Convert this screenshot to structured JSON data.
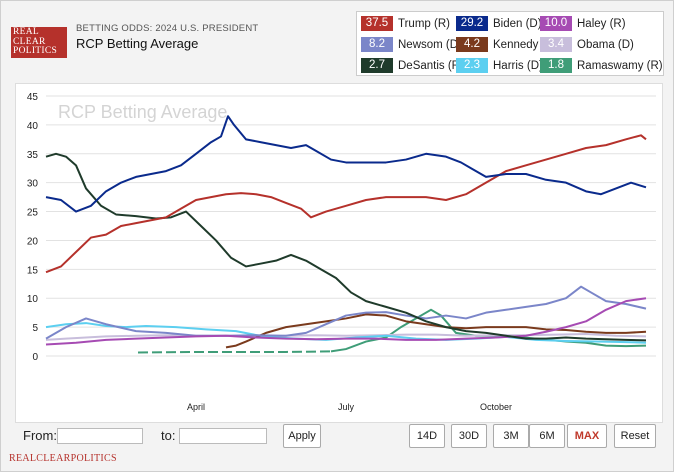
{
  "header": {
    "logo_line1": "REAL",
    "logo_line2": "CLEAR",
    "logo_line3": "POLITICS",
    "subhead": "BETTING ODDS: 2024 U.S. PRESIDENT",
    "title": "RCP Betting Average"
  },
  "legend": [
    {
      "value": "37.5",
      "label": "Trump (R)",
      "color": "#b5312b"
    },
    {
      "value": "29.2",
      "label": "Biden (D)",
      "color": "#0a2a8c"
    },
    {
      "value": "10.0",
      "label": "Haley (R)",
      "color": "#a64bb3"
    },
    {
      "value": "8.2",
      "label": "Newsom (D)",
      "color": "#7b86c9"
    },
    {
      "value": "4.2",
      "label": "Kennedy (I)",
      "color": "#7a3a1d"
    },
    {
      "value": "3.4",
      "label": "Obama (D)",
      "color": "#c8bedc"
    },
    {
      "value": "2.7",
      "label": "DeSantis (R)",
      "color": "#1f3b2b"
    },
    {
      "value": "2.3",
      "label": "Harris (D)",
      "color": "#5ccff0"
    },
    {
      "value": "1.8",
      "label": "Ramaswamy (R)",
      "color": "#3f9d78"
    }
  ],
  "controls": {
    "from_label": "From:",
    "to_label": "to:",
    "apply_label": "Apply",
    "ranges": [
      "14D",
      "30D",
      "3M",
      "6M",
      "MAX"
    ],
    "active_range": "MAX",
    "reset_label": "Reset"
  },
  "footer": "REALCLEARPOLITICS",
  "chart_data": {
    "type": "line",
    "watermark": "RCP Betting Average",
    "yticks": [
      0,
      5,
      10,
      15,
      20,
      25,
      30,
      35,
      40,
      45
    ],
    "ylim": [
      0,
      45
    ],
    "x_tick_labels": [
      {
        "label": "April",
        "x": 150
      },
      {
        "label": "July",
        "x": 300
      },
      {
        "label": "October",
        "x": 450
      }
    ],
    "xlim": [
      0,
      610
    ],
    "grid": "horizontal",
    "series": [
      {
        "name": "Ramaswamy (R)",
        "color": "#3f9d78",
        "dashed_until": 285,
        "points": [
          [
            92,
            0.6
          ],
          [
            150,
            0.7
          ],
          [
            200,
            0.7
          ],
          [
            240,
            0.7
          ],
          [
            285,
            0.8
          ],
          [
            300,
            1.2
          ],
          [
            320,
            2.5
          ],
          [
            340,
            3.2
          ],
          [
            355,
            5.0
          ],
          [
            370,
            6.5
          ],
          [
            385,
            8.0
          ],
          [
            395,
            7.0
          ],
          [
            410,
            4.0
          ],
          [
            430,
            3.5
          ],
          [
            460,
            3.5
          ],
          [
            490,
            3.0
          ],
          [
            520,
            2.5
          ],
          [
            540,
            2.3
          ],
          [
            560,
            1.8
          ],
          [
            580,
            1.7
          ],
          [
            600,
            1.8
          ]
        ]
      },
      {
        "name": "Obama (D)",
        "color": "#c8bedc",
        "points": [
          [
            0,
            2.8
          ],
          [
            20,
            3.0
          ],
          [
            40,
            3.2
          ],
          [
            60,
            3.4
          ],
          [
            90,
            3.5
          ],
          [
            120,
            3.6
          ],
          [
            150,
            3.5
          ],
          [
            180,
            3.5
          ],
          [
            210,
            3.3
          ],
          [
            240,
            3.5
          ],
          [
            270,
            3.6
          ],
          [
            300,
            3.5
          ],
          [
            330,
            3.6
          ],
          [
            360,
            3.7
          ],
          [
            390,
            3.7
          ],
          [
            420,
            3.5
          ],
          [
            450,
            3.6
          ],
          [
            480,
            3.6
          ],
          [
            510,
            3.7
          ],
          [
            540,
            3.8
          ],
          [
            570,
            3.5
          ],
          [
            600,
            3.4
          ]
        ]
      },
      {
        "name": "Harris (D)",
        "color": "#5ccff0",
        "points": [
          [
            0,
            5.0
          ],
          [
            20,
            5.5
          ],
          [
            40,
            5.7
          ],
          [
            60,
            5.2
          ],
          [
            80,
            5.0
          ],
          [
            100,
            5.2
          ],
          [
            130,
            5.0
          ],
          [
            160,
            4.6
          ],
          [
            190,
            4.3
          ],
          [
            220,
            3.3
          ],
          [
            250,
            3.0
          ],
          [
            280,
            2.8
          ],
          [
            310,
            3.2
          ],
          [
            340,
            3.5
          ],
          [
            370,
            3.0
          ],
          [
            400,
            2.8
          ],
          [
            430,
            3.0
          ],
          [
            460,
            3.3
          ],
          [
            490,
            2.8
          ],
          [
            520,
            2.6
          ],
          [
            550,
            2.5
          ],
          [
            580,
            2.4
          ],
          [
            600,
            2.3
          ]
        ]
      },
      {
        "name": "Kennedy (I)",
        "color": "#7a3a1d",
        "points": [
          [
            180,
            1.5
          ],
          [
            190,
            1.8
          ],
          [
            200,
            2.5
          ],
          [
            220,
            4.0
          ],
          [
            240,
            5.0
          ],
          [
            260,
            5.5
          ],
          [
            280,
            6.0
          ],
          [
            300,
            6.5
          ],
          [
            320,
            7.2
          ],
          [
            340,
            7.0
          ],
          [
            360,
            6.0
          ],
          [
            380,
            5.5
          ],
          [
            400,
            5.0
          ],
          [
            420,
            4.8
          ],
          [
            440,
            5.0
          ],
          [
            460,
            5.0
          ],
          [
            480,
            5.0
          ],
          [
            500,
            4.6
          ],
          [
            520,
            4.5
          ],
          [
            540,
            4.2
          ],
          [
            560,
            4.0
          ],
          [
            580,
            4.0
          ],
          [
            600,
            4.2
          ]
        ]
      },
      {
        "name": "Newsom (D)",
        "color": "#7b86c9",
        "points": [
          [
            0,
            3.0
          ],
          [
            20,
            5.0
          ],
          [
            40,
            6.5
          ],
          [
            60,
            5.5
          ],
          [
            90,
            4.3
          ],
          [
            120,
            4.0
          ],
          [
            150,
            3.5
          ],
          [
            180,
            3.5
          ],
          [
            210,
            3.6
          ],
          [
            240,
            3.5
          ],
          [
            260,
            4.0
          ],
          [
            280,
            5.5
          ],
          [
            300,
            7.0
          ],
          [
            320,
            7.5
          ],
          [
            340,
            7.6
          ],
          [
            360,
            7.0
          ],
          [
            380,
            6.5
          ],
          [
            400,
            7.0
          ],
          [
            420,
            6.5
          ],
          [
            440,
            7.5
          ],
          [
            460,
            8.0
          ],
          [
            480,
            8.5
          ],
          [
            500,
            9.0
          ],
          [
            520,
            10.0
          ],
          [
            535,
            12.0
          ],
          [
            545,
            11.0
          ],
          [
            560,
            9.5
          ],
          [
            580,
            9.0
          ],
          [
            600,
            8.2
          ]
        ]
      },
      {
        "name": "Haley (R)",
        "color": "#a64bb3",
        "points": [
          [
            0,
            2.0
          ],
          [
            30,
            2.3
          ],
          [
            60,
            2.8
          ],
          [
            90,
            3.0
          ],
          [
            120,
            3.2
          ],
          [
            150,
            3.4
          ],
          [
            180,
            3.5
          ],
          [
            210,
            3.2
          ],
          [
            240,
            3.0
          ],
          [
            270,
            2.9
          ],
          [
            300,
            3.0
          ],
          [
            330,
            3.0
          ],
          [
            360,
            2.8
          ],
          [
            390,
            2.8
          ],
          [
            420,
            3.0
          ],
          [
            450,
            3.2
          ],
          [
            480,
            3.5
          ],
          [
            500,
            4.2
          ],
          [
            520,
            5.0
          ],
          [
            540,
            6.0
          ],
          [
            560,
            8.0
          ],
          [
            580,
            9.5
          ],
          [
            600,
            10.0
          ]
        ]
      },
      {
        "name": "DeSantis (R)",
        "color": "#1f3b2b",
        "points": [
          [
            0,
            34.5
          ],
          [
            10,
            35.0
          ],
          [
            20,
            34.5
          ],
          [
            30,
            33.0
          ],
          [
            40,
            29.0
          ],
          [
            55,
            26.0
          ],
          [
            70,
            24.5
          ],
          [
            90,
            24.2
          ],
          [
            110,
            23.8
          ],
          [
            125,
            24.0
          ],
          [
            140,
            25.0
          ],
          [
            155,
            22.5
          ],
          [
            170,
            20.0
          ],
          [
            185,
            17.0
          ],
          [
            200,
            15.5
          ],
          [
            215,
            16.0
          ],
          [
            230,
            16.5
          ],
          [
            245,
            17.5
          ],
          [
            260,
            16.5
          ],
          [
            275,
            15.0
          ],
          [
            290,
            13.5
          ],
          [
            305,
            11.0
          ],
          [
            320,
            9.5
          ],
          [
            340,
            8.5
          ],
          [
            360,
            7.5
          ],
          [
            380,
            6.0
          ],
          [
            400,
            5.0
          ],
          [
            420,
            4.3
          ],
          [
            440,
            4.0
          ],
          [
            460,
            3.5
          ],
          [
            480,
            3.0
          ],
          [
            500,
            3.0
          ],
          [
            520,
            3.2
          ],
          [
            540,
            3.0
          ],
          [
            560,
            2.9
          ],
          [
            580,
            2.8
          ],
          [
            600,
            2.7
          ]
        ]
      },
      {
        "name": "Trump (R)",
        "color": "#b5312b",
        "points": [
          [
            0,
            14.5
          ],
          [
            15,
            15.5
          ],
          [
            30,
            18.0
          ],
          [
            45,
            20.5
          ],
          [
            60,
            21.0
          ],
          [
            75,
            22.5
          ],
          [
            90,
            23.0
          ],
          [
            105,
            23.5
          ],
          [
            120,
            24.0
          ],
          [
            135,
            25.5
          ],
          [
            150,
            27.0
          ],
          [
            165,
            27.5
          ],
          [
            180,
            28.0
          ],
          [
            195,
            28.2
          ],
          [
            210,
            28.0
          ],
          [
            225,
            27.5
          ],
          [
            240,
            26.5
          ],
          [
            255,
            25.5
          ],
          [
            265,
            24.0
          ],
          [
            280,
            25.0
          ],
          [
            300,
            26.0
          ],
          [
            320,
            27.0
          ],
          [
            340,
            27.5
          ],
          [
            360,
            27.5
          ],
          [
            380,
            27.5
          ],
          [
            400,
            27.0
          ],
          [
            420,
            28.0
          ],
          [
            440,
            30.0
          ],
          [
            460,
            32.0
          ],
          [
            480,
            33.0
          ],
          [
            500,
            34.0
          ],
          [
            520,
            35.0
          ],
          [
            540,
            36.0
          ],
          [
            560,
            36.5
          ],
          [
            580,
            37.5
          ],
          [
            595,
            38.2
          ],
          [
            600,
            37.5
          ]
        ]
      },
      {
        "name": "Biden (D)",
        "color": "#0a2a8c",
        "points": [
          [
            0,
            27.5
          ],
          [
            15,
            27.0
          ],
          [
            30,
            25.0
          ],
          [
            45,
            26.0
          ],
          [
            60,
            28.5
          ],
          [
            75,
            30.0
          ],
          [
            90,
            31.0
          ],
          [
            105,
            31.5
          ],
          [
            120,
            32.0
          ],
          [
            135,
            33.0
          ],
          [
            150,
            35.0
          ],
          [
            165,
            37.0
          ],
          [
            175,
            38.0
          ],
          [
            182,
            41.5
          ],
          [
            188,
            40.0
          ],
          [
            200,
            37.5
          ],
          [
            215,
            37.0
          ],
          [
            230,
            36.5
          ],
          [
            245,
            36.0
          ],
          [
            260,
            36.5
          ],
          [
            270,
            35.5
          ],
          [
            285,
            34.0
          ],
          [
            300,
            33.5
          ],
          [
            320,
            33.5
          ],
          [
            340,
            33.5
          ],
          [
            360,
            34.0
          ],
          [
            380,
            35.0
          ],
          [
            400,
            34.5
          ],
          [
            415,
            33.5
          ],
          [
            425,
            32.5
          ],
          [
            440,
            31.0
          ],
          [
            460,
            31.5
          ],
          [
            480,
            31.5
          ],
          [
            500,
            30.5
          ],
          [
            520,
            30.0
          ],
          [
            540,
            28.5
          ],
          [
            555,
            28.0
          ],
          [
            570,
            29.0
          ],
          [
            585,
            30.0
          ],
          [
            600,
            29.2
          ]
        ]
      }
    ]
  }
}
